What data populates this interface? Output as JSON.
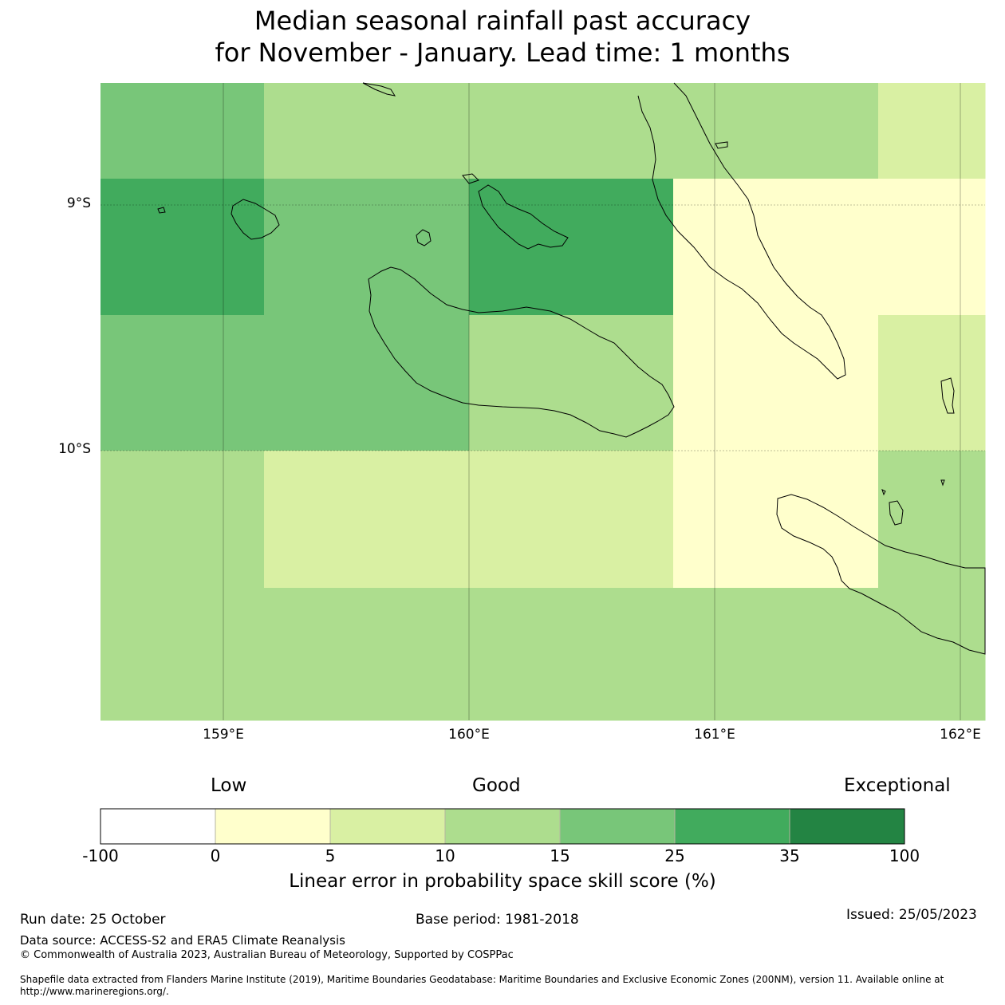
{
  "title": {
    "line1": "Median seasonal rainfall past accuracy",
    "line2": "for November - January. Lead time: 1 months"
  },
  "map": {
    "lat_labels": [
      "9°S",
      "10°S"
    ],
    "lon_labels": [
      "159°E",
      "160°E",
      "161°E",
      "162°E"
    ],
    "extent": {
      "lon": [
        158.5,
        162.1
      ],
      "lat": [
        -11.1,
        -8.5
      ]
    },
    "grid_rows": [
      [
        25,
        15,
        15,
        15,
        15,
        15,
        10
      ],
      [
        35,
        25,
        25,
        35,
        5,
        5,
        5
      ],
      [
        25,
        25,
        25,
        15,
        5,
        5,
        10
      ],
      [
        15,
        10,
        10,
        10,
        5,
        5,
        15
      ],
      [
        15,
        15,
        15,
        15,
        15,
        15,
        15
      ]
    ]
  },
  "legend": {
    "categories": [
      "Low",
      "Good",
      "Exceptional"
    ],
    "bins": [
      {
        "from": "-100",
        "to": "0",
        "color": "#ffffff"
      },
      {
        "from": "0",
        "to": "5",
        "color": "#ffffcc"
      },
      {
        "from": "5",
        "to": "10",
        "color": "#d9f0a3"
      },
      {
        "from": "10",
        "to": "15",
        "color": "#addd8e"
      },
      {
        "from": "15",
        "to": "25",
        "color": "#78c679"
      },
      {
        "from": "25",
        "to": "35",
        "color": "#41ab5d"
      },
      {
        "from": "35",
        "to": "100",
        "color": "#238443"
      }
    ],
    "ticks": [
      "-100",
      "0",
      "5",
      "10",
      "15",
      "25",
      "35",
      "100"
    ],
    "title": "Linear error in probability space skill score (%)"
  },
  "footer": {
    "run_date": "Run date: 25 October",
    "base_period": "Base period: 1981-2018",
    "issued": "Issued: 25/05/2023",
    "data_source": "Data source: ACCESS-S2 and ERA5 Climate Reanalysis",
    "copyright": "© Commonwealth of Australia 2023, Australian Bureau of Meteorology, Supported by COSPPac",
    "shapefile_line1": "Shapefile data extracted from Flanders Marine Institute (2019), Maritime Boundaries Geodatabase: Maritime Boundaries and Exclusive Economic Zones (200NM), version 11. Available online at",
    "shapefile_line2": "http://www.marineregions.org/."
  }
}
